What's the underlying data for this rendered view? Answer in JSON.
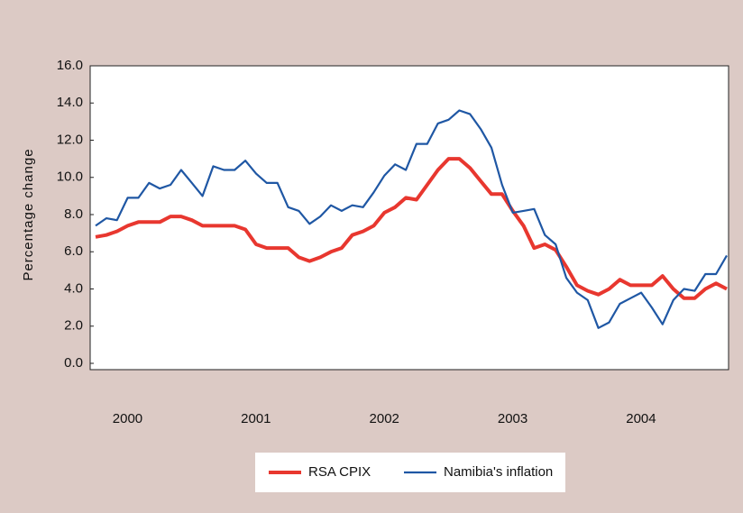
{
  "chart_data": {
    "type": "line",
    "y_label": "Percentage change",
    "categories": [
      null,
      null,
      null,
      null,
      "2000",
      null,
      null,
      null,
      null,
      null,
      null,
      null,
      null,
      null,
      null,
      null,
      "2001",
      null,
      null,
      null,
      null,
      null,
      null,
      null,
      null,
      null,
      null,
      null,
      "2002",
      null,
      null,
      null,
      null,
      null,
      null,
      null,
      null,
      null,
      null,
      null,
      "2003",
      null,
      null,
      null,
      null,
      null,
      null,
      null,
      null,
      null,
      null,
      null,
      "2004",
      null,
      null,
      null,
      null,
      null,
      null,
      null
    ],
    "series": [
      {
        "name": "RSA CPIX",
        "color": "#e8372f",
        "values": [
          6.8,
          6.9,
          7.1,
          7.4,
          7.6,
          7.6,
          7.6,
          7.9,
          7.9,
          7.7,
          7.4,
          7.4,
          7.4,
          7.4,
          7.2,
          6.4,
          6.2,
          6.2,
          6.2,
          5.7,
          5.5,
          5.7,
          6.0,
          6.2,
          6.9,
          7.1,
          7.4,
          8.1,
          8.4,
          8.9,
          8.8,
          9.6,
          10.4,
          11.0,
          11.0,
          10.5,
          9.8,
          9.1,
          9.1,
          8.2,
          7.4,
          6.2,
          6.4,
          6.1,
          5.2,
          4.2,
          3.9,
          3.7,
          4.0,
          4.5,
          4.2,
          4.2,
          4.2,
          4.7,
          4.0,
          3.5,
          3.5,
          4.0,
          4.3,
          4.0
        ]
      },
      {
        "name": "Namibia's inflation",
        "color": "#1f57a4",
        "values": [
          7.4,
          7.8,
          7.7,
          8.9,
          8.9,
          9.7,
          9.4,
          9.6,
          10.4,
          9.7,
          9.0,
          10.6,
          10.4,
          10.4,
          10.9,
          10.2,
          9.7,
          9.7,
          8.4,
          8.2,
          7.5,
          7.9,
          8.5,
          8.2,
          8.5,
          8.4,
          9.2,
          10.1,
          10.7,
          10.4,
          11.8,
          11.8,
          12.9,
          13.1,
          13.6,
          13.4,
          12.6,
          11.6,
          9.6,
          8.1,
          8.2,
          8.3,
          6.9,
          6.4,
          4.6,
          3.8,
          3.4,
          1.9,
          2.2,
          3.2,
          3.5,
          3.8,
          3.0,
          2.1,
          3.4,
          4.0,
          3.9,
          4.8,
          4.8,
          5.8
        ]
      }
    ],
    "ylim": [
      0,
      16
    ],
    "yticks": [
      {
        "value": 0,
        "label": "0.0"
      },
      {
        "value": 2,
        "label": "2.0"
      },
      {
        "value": 4,
        "label": "4.0"
      },
      {
        "value": 6,
        "label": "6.0"
      },
      {
        "value": 8,
        "label": "8.0"
      },
      {
        "value": 10,
        "label": "10.0"
      },
      {
        "value": 12,
        "label": "12.0"
      },
      {
        "value": 14,
        "label": "14.0"
      },
      {
        "value": 16,
        "label": "16.0"
      }
    ],
    "grid": false
  }
}
